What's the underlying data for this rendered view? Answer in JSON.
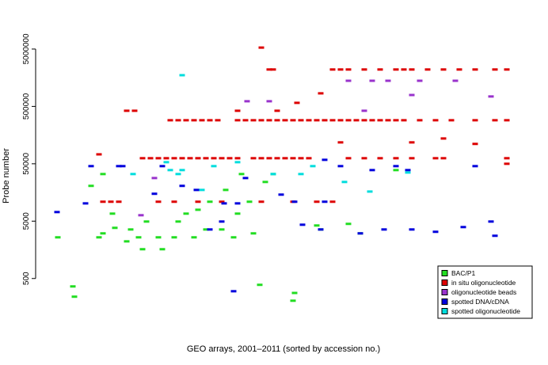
{
  "chart_data": {
    "type": "scatter",
    "x_label": "GEO arrays, 2001–2011 (sorted by accession no.)",
    "y_label": "Probe number",
    "log_y": true,
    "xlim": [
      0,
      612
    ],
    "ylim": [
      67,
      13800000
    ],
    "yticks": [
      500,
      5000,
      50000,
      500000,
      5000000
    ],
    "legend_position": "bottom-right",
    "series": [
      {
        "name": "BAC/P1",
        "color": "#22dd22",
        "x": [
          13,
          32,
          34,
          65,
          70,
          82,
          85,
          100,
          105,
          115,
          120,
          125,
          140,
          145,
          160,
          165,
          175,
          185,
          190,
          200,
          205,
          220,
          225,
          235,
          240,
          245,
          255,
          260,
          268,
          275,
          285,
          310,
          312,
          340,
          345,
          380,
          395,
          440,
          70,
          55
        ],
        "values": [
          2610,
          364,
          241,
          2610,
          3060,
          6760,
          3820,
          2220,
          3580,
          2610,
          1620,
          4920,
          2610,
          1620,
          2610,
          4920,
          6760,
          2610,
          7900,
          3580,
          10900,
          3580,
          17500,
          2610,
          6760,
          33100,
          10900,
          3060,
          388,
          24100,
          33100,
          205,
          280,
          4200,
          3580,
          4480,
          3060,
          38800,
          33100,
          20600
        ]
      },
      {
        "name": "in situ oligonucleotide",
        "color": "#dd0000",
        "x": [
          155,
          165,
          175,
          185,
          195,
          205,
          215,
          240,
          250,
          260,
          270,
          280,
          290,
          300,
          310,
          320,
          330,
          340,
          350,
          360,
          370,
          380,
          390,
          400,
          410,
          420,
          430,
          440,
          450,
          470,
          490,
          510,
          540,
          565,
          580,
          120,
          130,
          140,
          150,
          160,
          170,
          180,
          190,
          200,
          210,
          220,
          230,
          240,
          260,
          270,
          280,
          290,
          300,
          310,
          320,
          330,
          380,
          400,
          420,
          440,
          460,
          490,
          500,
          580,
          280,
          285,
          360,
          370,
          380,
          400,
          420,
          440,
          450,
          460,
          480,
          500,
          520,
          540,
          565,
          580,
          70,
          80,
          90,
          140,
          160,
          190,
          220,
          270,
          310,
          340,
          360,
          100,
          110,
          270,
          65,
          315,
          345,
          540,
          580,
          370,
          460,
          500,
          240,
          290
        ],
        "values": [
          287000,
          287000,
          287000,
          287000,
          287000,
          287000,
          287000,
          287000,
          287000,
          287000,
          287000,
          287000,
          287000,
          287000,
          287000,
          287000,
          287000,
          287000,
          287000,
          287000,
          287000,
          287000,
          287000,
          287000,
          287000,
          287000,
          287000,
          287000,
          287000,
          287000,
          287000,
          287000,
          287000,
          287000,
          287000,
          62500,
          62500,
          62500,
          62500,
          62500,
          62500,
          62500,
          62500,
          62500,
          62500,
          62500,
          62500,
          62500,
          62500,
          62500,
          62500,
          62500,
          62500,
          62500,
          62500,
          62500,
          62500,
          62500,
          62500,
          62500,
          62500,
          62500,
          62500,
          62500,
          2200000,
          2200000,
          2200000,
          2200000,
          2200000,
          2200000,
          2200000,
          2200000,
          2200000,
          2200000,
          2200000,
          2200000,
          2200000,
          2200000,
          2200000,
          2200000,
          10900,
          10900,
          10900,
          10900,
          10900,
          10900,
          10900,
          10900,
          10900,
          10900,
          10900,
          420000,
          420000,
          5300000,
          73000,
          577000,
          845000,
          111000,
          50000,
          118000,
          118000,
          138000,
          420000,
          420000
        ]
      },
      {
        "name": "oligonucleotide beads",
        "color": "#9933cc",
        "x": [
          380,
          410,
          430,
          470,
          515,
          560,
          252,
          280,
          400,
          460,
          118,
          135
        ],
        "values": [
          1400000,
          1400000,
          1400000,
          1400000,
          1400000,
          745000,
          615000,
          615000,
          420000,
          790000,
          6340,
          28200
        ]
      },
      {
        "name": "spotted DNA/cDNA",
        "color": "#0000dd",
        "x": [
          12,
          48,
          55,
          90,
          95,
          135,
          145,
          170,
          188,
          205,
          223,
          235,
          240,
          220,
          250,
          295,
          312,
          322,
          345,
          350,
          370,
          395,
          410,
          425,
          440,
          455,
          460,
          490,
          525,
          560,
          565,
          540,
          350
        ],
        "values": [
          7200,
          10200,
          45500,
          45500,
          45500,
          15000,
          45500,
          20600,
          17500,
          3580,
          10200,
          300,
          10200,
          4920,
          28200,
          14500,
          10900,
          4330,
          3580,
          58600,
          45500,
          3060,
          38800,
          3580,
          45500,
          38800,
          3580,
          3260,
          3940,
          4920,
          2780,
          45500,
          10900
        ]
      },
      {
        "name": "spotted oligonucleotide",
        "color": "#00dddd",
        "x": [
          170,
          108,
          150,
          155,
          165,
          170,
          195,
          210,
          240,
          320,
          375,
          407,
          285,
          455,
          335
        ],
        "values": [
          1750000,
          33100,
          53300,
          38800,
          33100,
          38800,
          17500,
          45500,
          53300,
          33100,
          24100,
          16400,
          33100,
          35200,
          45500
        ]
      }
    ]
  }
}
